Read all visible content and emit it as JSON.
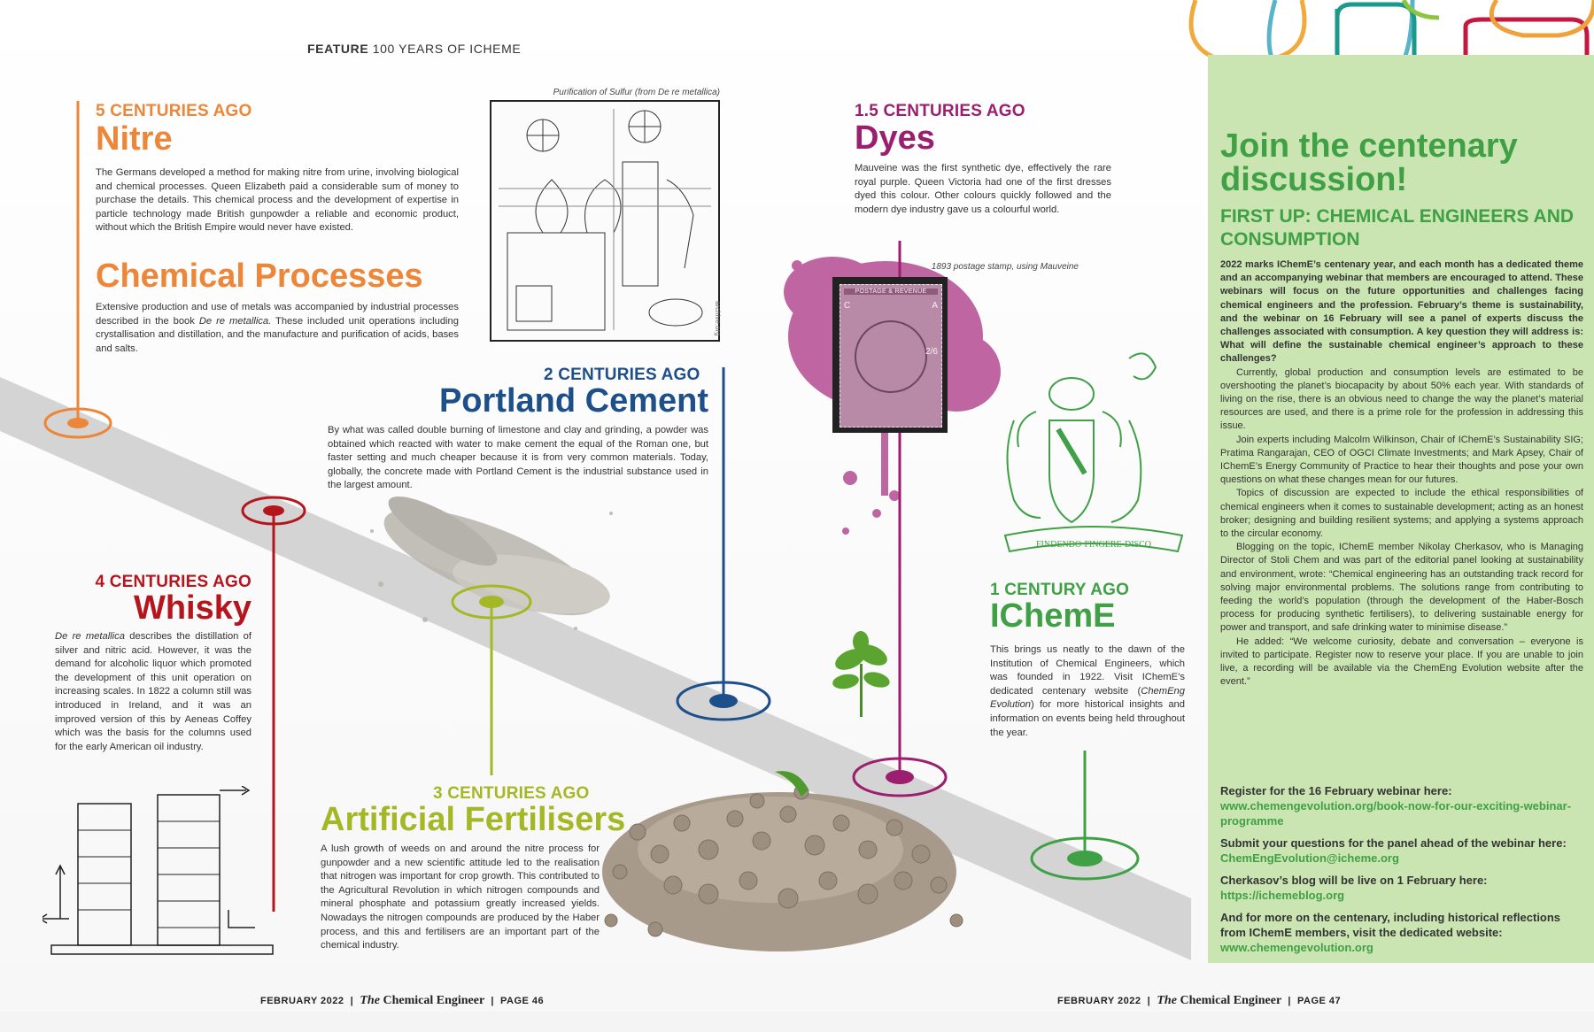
{
  "header": {
    "section": "FEATURE",
    "title": "100 YEARS OF ICHEME"
  },
  "colors": {
    "nitre": "#ec8638",
    "whisky": "#b5161d",
    "fertiliser": "#a4b826",
    "cement": "#1d4f8a",
    "dyes": "#9b1f6e",
    "icheme": "#3fa045",
    "sidebar_bg": "#cbe5b2",
    "band": "#d4d4d4"
  },
  "nitre": {
    "kicker": "5 CENTURIES AGO",
    "headline": "Nitre",
    "body": "The Germans developed a method for making nitre from urine, involving biological and chemical processes. Queen Elizabeth paid a considerable sum of money to purchase the details. This chemical process and the development of expertise in particle technology made British gunpowder a reliable and economic product, without which the British Empire would never have existed."
  },
  "processes": {
    "headline": "Chemical Processes",
    "body_before": "Extensive production and use of metals was accompanied by industrial processes described in the book ",
    "body_italic": "De re metallica.",
    "body_after": " These included unit operations including crystallisation and distillation, and the manufacture and purification of acids, bases and salts."
  },
  "woodcut": {
    "caption": "Purification of Sulfur (from De re metallica)",
    "credit": "archive.org"
  },
  "cement": {
    "kicker": "2 CENTURIES AGO",
    "headline": "Portland Cement",
    "body": "By what was called double burning of limestone and clay and grinding, a powder was obtained which reacted with water to make cement the equal of the Roman one, but faster setting and much cheaper because it is from very common materials. Today, globally, the concrete made with Portland Cement is the industrial substance used in the largest amount."
  },
  "dyes": {
    "kicker": "1.5 CENTURIES AGO",
    "headline": "Dyes",
    "body": "Mauveine was the first synthetic dye, effectively the rare royal purple. Queen Victoria had one of the first dresses dyed this colour. Other colours quickly followed and the modern dye industry gave us a colourful world."
  },
  "stamp": {
    "caption": "1893 postage stamp, using Mauveine",
    "top_text": "POSTAGE & REVENUE",
    "left_letter": "C",
    "right_letter": "A",
    "value": "2/6"
  },
  "crest": {
    "motto": "FINDENDO·FINGERE·DISCO"
  },
  "whisky": {
    "kicker": "4 CENTURIES AGO",
    "headline": "Whisky",
    "body_italic": "De re metallica",
    "body": " describes the distillation of silver and nitric acid. However, it was the demand for alcoholic liquor which promoted the development of this unit operation on increasing scales. In 1822 a column still was introduced in Ireland, and it was an improved version of this by Aeneas Coffey which was the basis for the columns used for the early American oil industry."
  },
  "fertilisers": {
    "kicker": "3 CENTURIES AGO",
    "headline": "Artificial Fertilisers",
    "body": "A lush growth of weeds on and around the nitre process for gunpowder and a new scientific attitude led to the realisation that nitrogen was important for crop growth. This contributed to the Agricultural Revolution in which nitrogen compounds and mineral phosphate and potassium greatly increased yields. Nowadays the nitrogen compounds are produced by the Haber process, and this and fertilisers are an important part of the chemical industry."
  },
  "icheme": {
    "kicker": "1 CENTURY AGO",
    "headline": "IChemE",
    "body_before": "This brings us neatly to the dawn of the Institution of Chemical Engineers, which was founded in 1922. Visit IChemE’s dedicated centenary website (",
    "body_italic": "ChemEng Evolution",
    "body_after": ") for more historical insights and information on events being held throughout the year."
  },
  "sidebar": {
    "title": "Join the centenary discussion!",
    "subtitle": "FIRST UP: CHEMICAL ENGINEERS AND CONSUMPTION",
    "lead": "2022 marks IChemE’s centenary year, and each month has a dedicated theme and an accompanying webinar that members are encouraged to attend. These webinars will focus on the future opportunities and challenges facing chemical engineers and the profession. February’s theme is sustainability, and the webinar on 16 February will see a panel of experts discuss the challenges associated with consumption. A key question they will address is: What will define the sustainable chemical engineer’s approach to these challenges?",
    "p1": "Currently, global production and consumption levels are estimated to be overshooting the planet’s biocapacity by about 50% each year. With standards of living on the rise, there is an obvious need to change the way the planet’s material resources are used, and there is a prime role for the profession in addressing this issue.",
    "p2": "Join experts including Malcolm Wilkinson, Chair of IChemE’s Sustainability SIG; Pratima Rangarajan, CEO of OGCI Climate Investments; and Mark Apsey, Chair of IChemE’s Energy Community of Practice to hear their thoughts and pose your own questions on what these changes mean for our futures.",
    "p3": "Topics of discussion are expected to include the ethical responsibilities of chemical engineers when it comes to sustainable development; acting as an honest broker; designing and building resilient systems; and applying a systems approach to the circular economy.",
    "p4": "Blogging on the topic, IChemE member Nikolay Cherkasov, who is Managing Director of Stoli Chem and was part of the editorial panel looking at sustainability and environment, wrote: “Chemical engineering has an outstanding track record for solving major environmental problems. The solutions range from contributing to feeding the world’s population (through the development of the Haber-Bosch process for producing synthetic fertilisers), to delivering sustainable energy for power and transport, and safe drinking water to minimise disease.”",
    "p5": "He added: “We welcome curiosity, debate and conversation – everyone is invited to participate. Register now to reserve your place. If you are unable to join live, a recording will be available via the ChemEng Evolution website after the event.”",
    "links": [
      {
        "text": "Register for the 16 February webinar here:",
        "url": "www.chemengevolution.org/book-now-for-our-exciting-webinar-programme"
      },
      {
        "text": "Submit your questions for the panel ahead of the webinar here: ",
        "url": "ChemEngEvolution@icheme.org"
      },
      {
        "text": "Cherkasov’s blog will be live on 1 February here:",
        "url": "https://ichemeblog.org"
      },
      {
        "text": "And for more on the centenary, including historical reflections from IChemE members, visit the dedicated website:",
        "url": "www.chemengevolution.org"
      }
    ]
  },
  "footer": {
    "left": {
      "date": "FEBRUARY 2022",
      "mag_the": "The",
      "mag_name": "Chemical Engineer",
      "page": "PAGE 46"
    },
    "right": {
      "date": "FEBRUARY 2022",
      "mag_the": "The",
      "mag_name": "Chemical Engineer",
      "page": "PAGE 47"
    }
  }
}
